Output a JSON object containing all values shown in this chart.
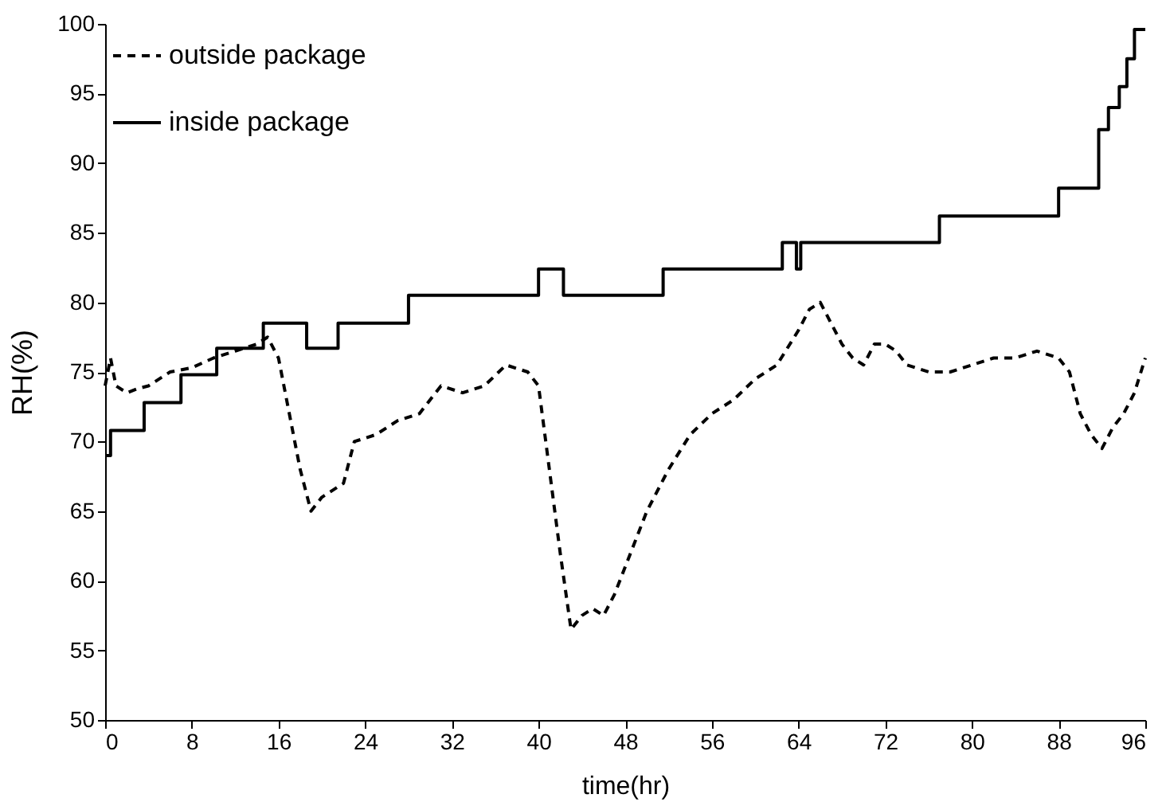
{
  "chart_data": {
    "type": "line",
    "xlabel": "time(hr)",
    "ylabel": "RH(%)",
    "xlim": [
      0,
      96
    ],
    "ylim": [
      50,
      100
    ],
    "xticks": [
      0,
      8,
      16,
      24,
      32,
      40,
      48,
      56,
      64,
      72,
      80,
      88,
      96
    ],
    "yticks": [
      50,
      55,
      60,
      65,
      70,
      75,
      80,
      85,
      90,
      95,
      100
    ],
    "grid": false,
    "legend": "top left",
    "marker": "none",
    "series": [
      {
        "name": "outside package",
        "type": "line",
        "line_style": "dashed",
        "color": "#000000",
        "x": [
          0,
          0.5,
          1,
          2,
          3,
          4,
          6,
          8,
          10,
          12,
          14,
          15,
          16,
          17,
          18,
          19,
          20,
          22,
          23,
          25,
          27,
          29,
          31,
          33,
          35,
          37,
          39,
          40,
          41,
          42,
          43,
          44,
          45,
          46,
          47,
          48,
          50,
          52,
          54,
          56,
          58,
          60,
          62,
          64,
          65,
          66,
          67,
          68,
          69,
          70,
          71,
          72,
          73,
          74,
          76,
          78,
          80,
          82,
          84,
          86,
          88,
          89,
          90,
          91,
          92,
          93,
          94,
          95,
          96
        ],
        "values": [
          74,
          76,
          74,
          73.5,
          73.8,
          74,
          75,
          75.3,
          76,
          76.5,
          77,
          77.5,
          76,
          72,
          68,
          65,
          66,
          67,
          70,
          70.5,
          71.5,
          72,
          74,
          73.5,
          74,
          75.5,
          75,
          74,
          68,
          62,
          56.5,
          57.5,
          58,
          57.5,
          59,
          61,
          65,
          68,
          70.5,
          72,
          73,
          74.5,
          75.5,
          78,
          79.5,
          80,
          78.5,
          77,
          76,
          75.5,
          77,
          77,
          76.5,
          75.5,
          75,
          75,
          75.5,
          76,
          76,
          76.5,
          76,
          75,
          72,
          70.5,
          69.5,
          71,
          72,
          73.5,
          76
        ]
      },
      {
        "name": "inside package",
        "type": "step",
        "line_style": "solid",
        "color": "#000000",
        "x": [
          0,
          0.5,
          3.6,
          7,
          10.3,
          14.6,
          18.6,
          21.5,
          28,
          40,
          42.3,
          51.5,
          62.5,
          63.8,
          64.2,
          77,
          88,
          91.7,
          92.6,
          93.6,
          94.3,
          95,
          96
        ],
        "values": [
          69,
          70.8,
          72.8,
          74.8,
          76.7,
          78.5,
          76.7,
          78.5,
          80.5,
          82.4,
          80.5,
          82.4,
          84.3,
          82.4,
          84.3,
          86.2,
          88.2,
          92.4,
          94,
          95.5,
          97.5,
          99.6,
          99.6
        ]
      }
    ]
  }
}
